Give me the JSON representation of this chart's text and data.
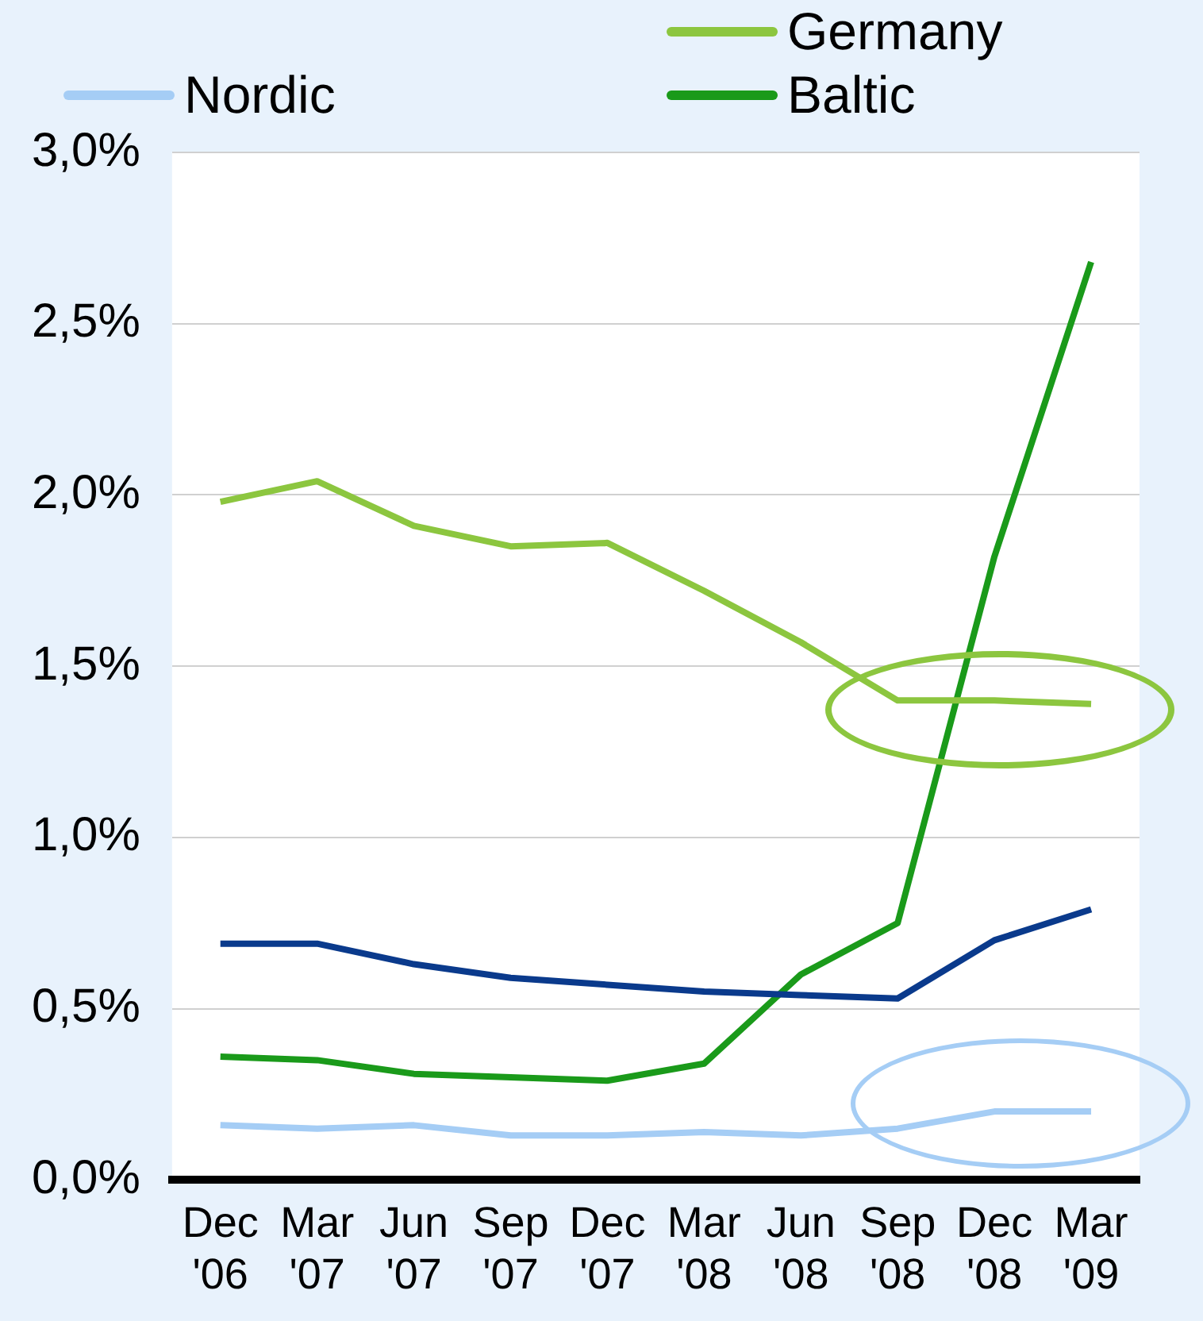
{
  "chart_data": {
    "type": "line",
    "categories": [
      "Dec '06",
      "Mar '07",
      "Jun '07",
      "Sep '07",
      "Dec '07",
      "Mar '08",
      "Jun '08",
      "Sep '08",
      "Dec '08",
      "Mar '09"
    ],
    "series": [
      {
        "color": "#0a3a8c",
        "values": [
          0.69,
          0.69,
          0.63,
          0.59,
          0.57,
          0.55,
          0.54,
          0.53,
          0.7,
          0.79
        ]
      },
      {
        "name": "Germany",
        "color": "#8cc63f",
        "values": [
          1.98,
          2.04,
          1.91,
          1.85,
          1.86,
          1.72,
          1.57,
          1.4,
          1.4,
          1.39
        ]
      },
      {
        "name": "Nordic",
        "color": "#a5cdf5",
        "values": [
          0.16,
          0.15,
          0.16,
          0.13,
          0.13,
          0.14,
          0.13,
          0.15,
          0.2,
          0.2
        ]
      },
      {
        "name": "Baltic",
        "color": "#1a9a1a",
        "values": [
          0.36,
          0.35,
          0.31,
          0.3,
          0.29,
          0.34,
          0.6,
          0.75,
          1.82,
          2.68
        ]
      }
    ],
    "ylim": [
      0,
      3
    ],
    "yticks": [
      {
        "value": 0,
        "label": "0,0%"
      },
      {
        "value": 0.5,
        "label": "0,5%"
      },
      {
        "value": 1,
        "label": "1,0%"
      },
      {
        "value": 1.5,
        "label": "1,5%"
      },
      {
        "value": 2,
        "label": "2,0%"
      },
      {
        "value": 2.5,
        "label": "2,5%"
      },
      {
        "value": 3,
        "label": "3,0%"
      }
    ],
    "grid": "y",
    "legend": "top",
    "marker": "none",
    "line_style": "solid"
  }
}
